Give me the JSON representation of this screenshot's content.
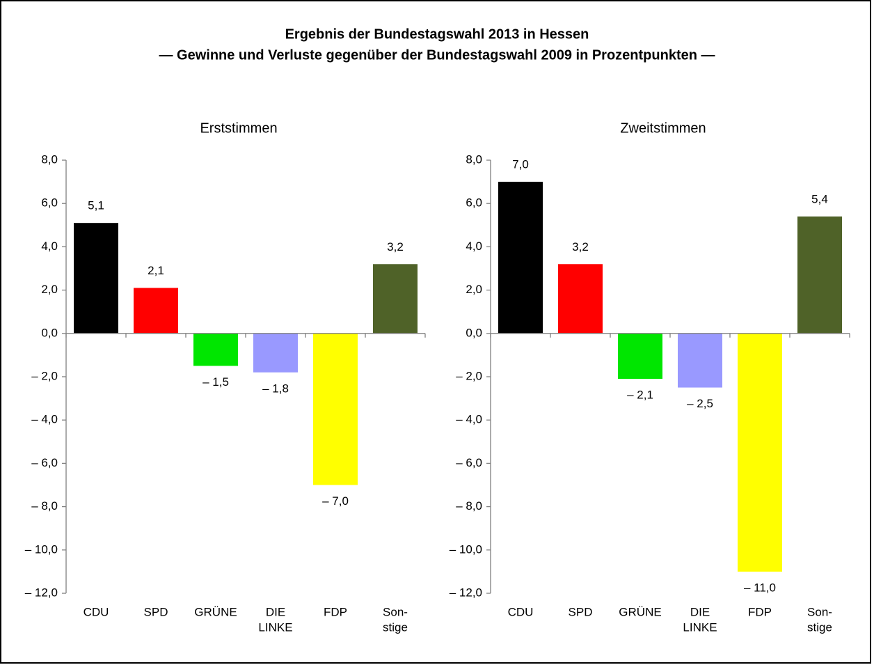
{
  "title": "Ergebnis der Bundestagswahl 2013 in Hessen",
  "subtitle": "— Gewinne und Verluste gegenüber der Bundestagswahl 2009 in Prozentpunkten —",
  "chart_data": [
    {
      "type": "bar",
      "title": "Erststimmen",
      "categories": [
        [
          "CDU"
        ],
        [
          "SPD"
        ],
        [
          "GRÜNE"
        ],
        [
          "DIE",
          "LINKE"
        ],
        [
          "FDP"
        ],
        [
          "Son-",
          "stige"
        ]
      ],
      "values": [
        5.1,
        2.1,
        -1.5,
        -1.8,
        -7.0,
        3.2
      ],
      "value_labels": [
        "5,1",
        "2,1",
        "– 1,5",
        "– 1,8",
        "– 7,0",
        "3,2"
      ],
      "colors": [
        "#000000",
        "#ff0000",
        "#00e600",
        "#9999ff",
        "#ffff00",
        "#4f6228"
      ],
      "ylim": [
        -12,
        8
      ],
      "yticks": [
        {
          "value": 8,
          "label": "8,0"
        },
        {
          "value": 6,
          "label": "6,0"
        },
        {
          "value": 4,
          "label": "4,0"
        },
        {
          "value": 2,
          "label": "2,0"
        },
        {
          "value": 0,
          "label": "0,0"
        },
        {
          "value": -2,
          "label": "– 2,0"
        },
        {
          "value": -4,
          "label": "– 4,0"
        },
        {
          "value": -6,
          "label": "– 6,0"
        },
        {
          "value": -8,
          "label": "– 8,0"
        },
        {
          "value": -10,
          "label": "– 10,0"
        },
        {
          "value": -12,
          "label": "– 12,0"
        }
      ]
    },
    {
      "type": "bar",
      "title": "Zweitstimmen",
      "categories": [
        [
          "CDU"
        ],
        [
          "SPD"
        ],
        [
          "GRÜNE"
        ],
        [
          "DIE",
          "LINKE"
        ],
        [
          "FDP"
        ],
        [
          "Son-",
          "stige"
        ]
      ],
      "values": [
        7.0,
        3.2,
        -2.1,
        -2.5,
        -11.0,
        5.4
      ],
      "value_labels": [
        "7,0",
        "3,2",
        "– 2,1",
        "– 2,5",
        "– 11,0",
        "5,4"
      ],
      "colors": [
        "#000000",
        "#ff0000",
        "#00e600",
        "#9999ff",
        "#ffff00",
        "#4f6228"
      ],
      "ylim": [
        -12,
        8
      ],
      "yticks": [
        {
          "value": 8,
          "label": "8,0"
        },
        {
          "value": 6,
          "label": "6,0"
        },
        {
          "value": 4,
          "label": "4,0"
        },
        {
          "value": 2,
          "label": "2,0"
        },
        {
          "value": 0,
          "label": "0,0"
        },
        {
          "value": -2,
          "label": "– 2,0"
        },
        {
          "value": -4,
          "label": "– 4,0"
        },
        {
          "value": -6,
          "label": "– 6,0"
        },
        {
          "value": -8,
          "label": "– 8,0"
        },
        {
          "value": -10,
          "label": "– 10,0"
        },
        {
          "value": -12,
          "label": "– 12,0"
        }
      ]
    }
  ]
}
